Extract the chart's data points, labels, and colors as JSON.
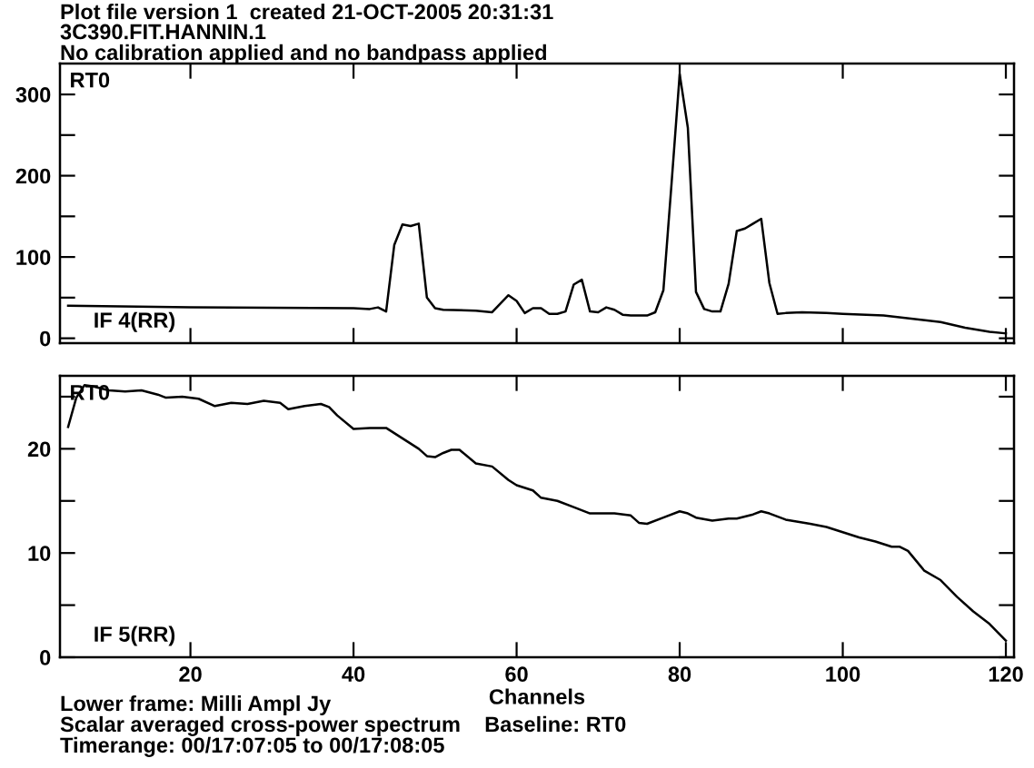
{
  "chart_data": [
    {
      "type": "line",
      "title": "Plot file version 1  created 21-OCT-2005 20:31:31",
      "subtitle": "3C390.FIT.HANNIN.1\nNo calibration applied and no bandpass applied",
      "annotations": [
        "RT0",
        "IF 4(RR)"
      ],
      "x": [
        5,
        20,
        40,
        42,
        43,
        44,
        45,
        46,
        47,
        48,
        49,
        50,
        51,
        55,
        57,
        59,
        60,
        61,
        62,
        63,
        64,
        65,
        66,
        67,
        68,
        69,
        70,
        71,
        72,
        73,
        74,
        76,
        77,
        78,
        79,
        80,
        81,
        82,
        83,
        84,
        85,
        86,
        87,
        88,
        89,
        90,
        91,
        92,
        93,
        95,
        98,
        100,
        105,
        112,
        115,
        118,
        120
      ],
      "series": [
        {
          "color": "#000000",
          "values": [
            40,
            38,
            37,
            36,
            38,
            33,
            115,
            140,
            138,
            141,
            50,
            37,
            35,
            34,
            32,
            53,
            46,
            31,
            37,
            37,
            30,
            30,
            33,
            66,
            72,
            33,
            32,
            38,
            35,
            29,
            28,
            28,
            32,
            59,
            190,
            325,
            259,
            57,
            36,
            33,
            33,
            67,
            132,
            135,
            141,
            147,
            68,
            30,
            31,
            32,
            31,
            30,
            28,
            20,
            13,
            8,
            6
          ]
        }
      ],
      "xlim": [
        4,
        121
      ],
      "xticks": [
        {
          "value": 20,
          "label": null
        },
        {
          "value": 40,
          "label": null
        },
        {
          "value": 60,
          "label": null
        },
        {
          "value": 80,
          "label": null
        },
        {
          "value": 100,
          "label": null
        },
        {
          "value": 120,
          "label": null
        }
      ],
      "ylim": [
        -6,
        338
      ],
      "yticks": [
        0,
        {
          "value": 50,
          "label": null
        },
        100,
        {
          "value": 150,
          "label": null
        },
        200,
        {
          "value": 250,
          "label": null
        },
        300
      ],
      "tick_labels": "y",
      "grid": false,
      "legend": false,
      "line_style": "solid",
      "marker": "none"
    },
    {
      "type": "line",
      "xlabel": "Channels",
      "annotations": [
        "RT0",
        "IF 5(RR)",
        "Lower frame: Milli Ampl Jy\nScalar averaged cross-power spectrum    Baseline: RT0\nTimerange: 00/17:07:05 to 00/17:08:05"
      ],
      "x": [
        5,
        6,
        7,
        8,
        10,
        12,
        14,
        16,
        17,
        19,
        21,
        23,
        25,
        27,
        29,
        31,
        32,
        34,
        36,
        37,
        38,
        40,
        42,
        44,
        46,
        48,
        49,
        50,
        51,
        52,
        53,
        55,
        57,
        59,
        60,
        62,
        63,
        65,
        67,
        69,
        72,
        74,
        75,
        76,
        78,
        80,
        81,
        82,
        84,
        86,
        87,
        89,
        90,
        91,
        93,
        96,
        98,
        100,
        102,
        104,
        106,
        107,
        108,
        110,
        112,
        114,
        116,
        118,
        120
      ],
      "series": [
        {
          "color": "#000000",
          "values": [
            22.1,
            24.9,
            26.1,
            26.0,
            25.6,
            25.5,
            25.6,
            25.2,
            24.9,
            25.0,
            24.8,
            24.1,
            24.4,
            24.3,
            24.6,
            24.4,
            23.8,
            24.1,
            24.3,
            24.0,
            23.2,
            21.9,
            22.0,
            22.0,
            21.0,
            20.0,
            19.3,
            19.2,
            19.6,
            19.9,
            19.9,
            18.6,
            18.3,
            17.0,
            16.5,
            16.0,
            15.3,
            15.0,
            14.4,
            13.8,
            13.8,
            13.6,
            12.9,
            12.8,
            13.4,
            14.0,
            13.8,
            13.4,
            13.1,
            13.3,
            13.3,
            13.7,
            14.0,
            13.8,
            13.2,
            12.8,
            12.5,
            12.0,
            11.5,
            11.1,
            10.6,
            10.6,
            10.2,
            8.3,
            7.4,
            5.8,
            4.4,
            3.2,
            1.6
          ]
        }
      ],
      "xlim": [
        4,
        121
      ],
      "xticks": [
        20,
        40,
        60,
        80,
        100,
        120
      ],
      "ylim": [
        0,
        27
      ],
      "yticks": [
        0,
        {
          "value": 5,
          "label": null
        },
        10,
        {
          "value": 15,
          "label": null
        },
        20,
        {
          "value": 25,
          "label": null
        }
      ],
      "grid": false,
      "legend": false,
      "line_style": "solid",
      "marker": "none"
    }
  ]
}
